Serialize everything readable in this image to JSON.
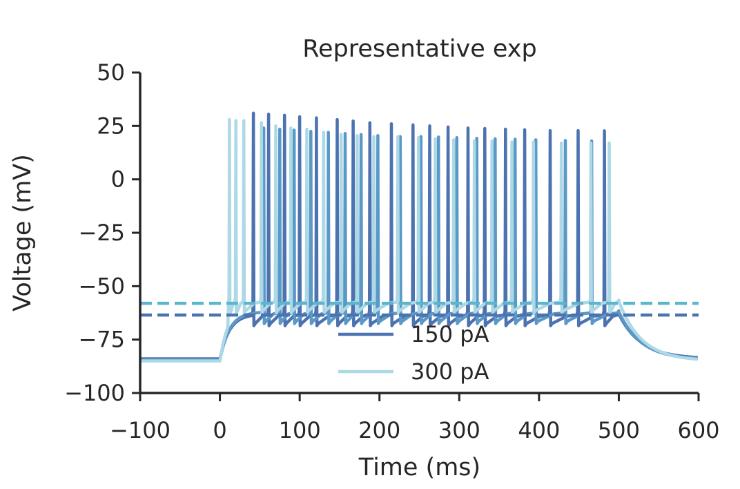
{
  "chart_data": {
    "type": "line",
    "title": "Representative exp",
    "xlabel": "Time (ms)",
    "ylabel": "Voltage (mV)",
    "xlim": [
      -100,
      600
    ],
    "ylim": [
      -100,
      50
    ],
    "xticks": [
      -100,
      0,
      100,
      200,
      300,
      400,
      500,
      600
    ],
    "yticks": [
      -100,
      -75,
      -50,
      -25,
      0,
      25,
      50
    ],
    "tick_labels_x": [
      "−100",
      "0",
      "100",
      "200",
      "300",
      "400",
      "500",
      "600"
    ],
    "tick_labels_y": [
      "−100",
      "−75",
      "−50",
      "−25",
      "0",
      "25",
      "50"
    ],
    "stimulus": {
      "start": 0,
      "end": 500
    },
    "grid": false,
    "legend_position": "lower-center",
    "series": [
      {
        "name": "150 pA",
        "color": "#4c72b0",
        "legend": true,
        "rest": -84,
        "plateau": -63,
        "threshold_line": -63.5,
        "spike_times": [
          42,
          61,
          81,
          100,
          121,
          147,
          167,
          188,
          215,
          242,
          263,
          286,
          311,
          332,
          358,
          382,
          414,
          449,
          482
        ],
        "spike_peaks": [
          31,
          30.5,
          30,
          29.3,
          28.8,
          28,
          27.3,
          26.5,
          26,
          25.5,
          25,
          24.5,
          24,
          23.8,
          23.5,
          23.2,
          22.8,
          22.8,
          22.7
        ]
      },
      {
        "name": "",
        "color": "#5a98c6",
        "legend": false,
        "rest": -84.5,
        "plateau": -62,
        "threshold_line": null,
        "spike_times": [
          55,
          75,
          93,
          114,
          136,
          157,
          177,
          198,
          226,
          252,
          274,
          297,
          322,
          345,
          370,
          396,
          433,
          466
        ],
        "spike_peaks": [
          24,
          23.5,
          23,
          22.5,
          22,
          21.5,
          21,
          20.5,
          20,
          20,
          19.8,
          19.5,
          19.2,
          19,
          18.8,
          18.5,
          18.2,
          18
        ]
      },
      {
        "name": "300 pA",
        "color": "#add8e6",
        "legend": true,
        "rest": -85,
        "plateau": -57,
        "threshold_line": -58,
        "spike_times": [
          12,
          20,
          30,
          52,
          70,
          89,
          109,
          130,
          152,
          172,
          193,
          223,
          249,
          270,
          293,
          319,
          341,
          366,
          393,
          428,
          465,
          488
        ],
        "spike_peaks": [
          28,
          27.5,
          27.5,
          26.5,
          25,
          24,
          23.5,
          22,
          21,
          20.5,
          20,
          20,
          19.5,
          19,
          18.5,
          18,
          18,
          17.5,
          17.5,
          17,
          17,
          17
        ]
      }
    ],
    "threshold_colors": {
      "150 pA": "#4c72b0",
      "300 pA": "#5bb5cc"
    }
  }
}
